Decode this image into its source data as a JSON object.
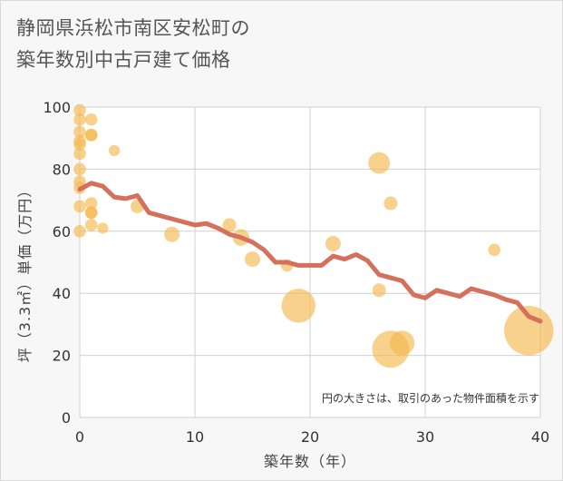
{
  "chart_data": {
    "type": "scatter",
    "title_lines": [
      "静岡県浜松市南区安松町の",
      "築年数別中古戸建て価格"
    ],
    "xlabel": "築年数（年）",
    "ylabel": "坪（3.3㎡）単価（万円）",
    "xlim": [
      0,
      40
    ],
    "ylim": [
      0,
      100
    ],
    "xticks": [
      "0",
      "10",
      "20",
      "30",
      "40"
    ],
    "yticks": [
      "0",
      "20",
      "40",
      "60",
      "80",
      "100"
    ],
    "grid": true,
    "annotation": "円の大きさは、取引のあった物件面積を示す",
    "colors": {
      "points": "#f5b84e",
      "line": "#d4705c",
      "background": "#f7f7f7",
      "plot": "#ffffff",
      "grid": "#d0d0d0"
    },
    "points": [
      {
        "x": 0,
        "y": 99,
        "size": 2
      },
      {
        "x": 0,
        "y": 96,
        "size": 2
      },
      {
        "x": 0,
        "y": 92,
        "size": 2
      },
      {
        "x": 0,
        "y": 89,
        "size": 2
      },
      {
        "x": 0,
        "y": 88,
        "size": 2
      },
      {
        "x": 0,
        "y": 85,
        "size": 2
      },
      {
        "x": 0,
        "y": 80,
        "size": 2
      },
      {
        "x": 0,
        "y": 76,
        "size": 2
      },
      {
        "x": 0,
        "y": 74,
        "size": 2
      },
      {
        "x": 0,
        "y": 68,
        "size": 2
      },
      {
        "x": 0,
        "y": 60,
        "size": 2
      },
      {
        "x": 1,
        "y": 96,
        "size": 2
      },
      {
        "x": 1,
        "y": 91,
        "size": 2
      },
      {
        "x": 1,
        "y": 91,
        "size": 2
      },
      {
        "x": 1,
        "y": 69,
        "size": 2
      },
      {
        "x": 1,
        "y": 66,
        "size": 2
      },
      {
        "x": 1,
        "y": 66,
        "size": 2
      },
      {
        "x": 1,
        "y": 62,
        "size": 2
      },
      {
        "x": 2,
        "y": 61,
        "size": 1.8
      },
      {
        "x": 3,
        "y": 86,
        "size": 1.8
      },
      {
        "x": 5,
        "y": 68,
        "size": 2.2
      },
      {
        "x": 8,
        "y": 59,
        "size": 2.5
      },
      {
        "x": 13,
        "y": 62,
        "size": 2.2
      },
      {
        "x": 14,
        "y": 58,
        "size": 2.7
      },
      {
        "x": 15,
        "y": 51,
        "size": 2.5
      },
      {
        "x": 18,
        "y": 49,
        "size": 2
      },
      {
        "x": 19,
        "y": 36,
        "size": 5.5
      },
      {
        "x": 22,
        "y": 56,
        "size": 2.5
      },
      {
        "x": 26,
        "y": 82,
        "size": 3.5
      },
      {
        "x": 26,
        "y": 41,
        "size": 2.2
      },
      {
        "x": 27,
        "y": 69,
        "size": 2.2
      },
      {
        "x": 27,
        "y": 22,
        "size": 6
      },
      {
        "x": 28,
        "y": 24,
        "size": 4
      },
      {
        "x": 36,
        "y": 54,
        "size": 2
      },
      {
        "x": 39,
        "y": 28,
        "size": 8
      }
    ],
    "trend": {
      "x": [
        0,
        1,
        2,
        3,
        4,
        5,
        6,
        7,
        8,
        9,
        10,
        11,
        12,
        13,
        14,
        15,
        16,
        17,
        18,
        19,
        20,
        21,
        22,
        23,
        24,
        25,
        26,
        27,
        28,
        29,
        30,
        31,
        32,
        33,
        34,
        35,
        36,
        37,
        38,
        39,
        40
      ],
      "y": [
        73.5,
        75.5,
        74.5,
        71,
        70.5,
        71.5,
        66,
        65,
        64,
        63,
        62,
        62.5,
        61,
        59,
        58,
        56.5,
        54,
        50,
        50,
        49,
        49,
        49,
        52,
        51,
        52.5,
        50.5,
        46,
        45,
        44,
        39.5,
        38.5,
        41,
        40,
        39,
        41.5,
        40.5,
        39.5,
        38,
        37,
        32.5,
        31
      ]
    }
  }
}
